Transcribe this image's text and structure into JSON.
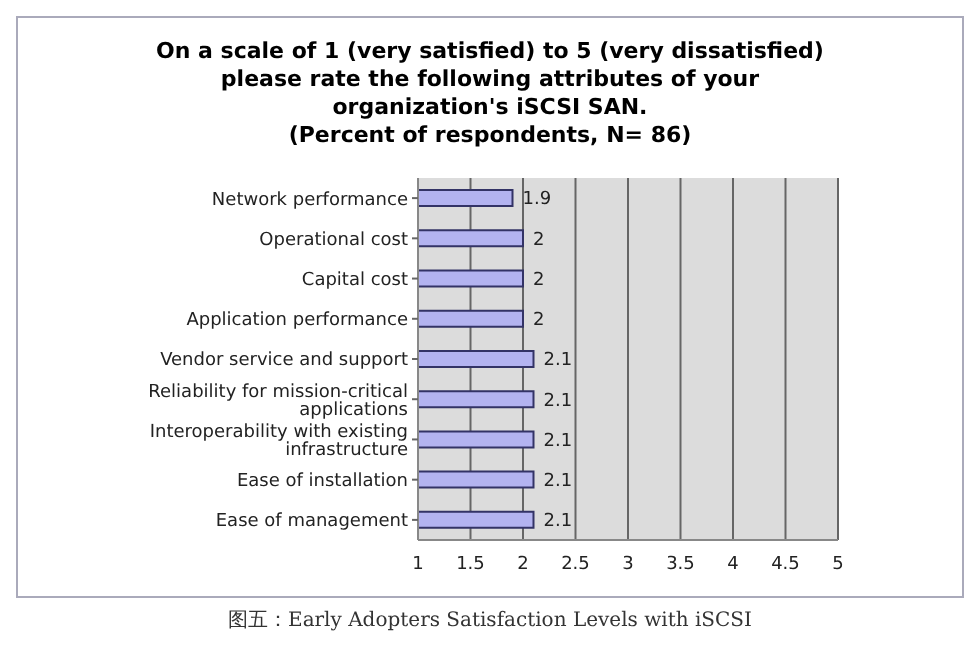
{
  "chart_data": {
    "type": "bar",
    "orientation": "horizontal",
    "title": "On a scale of 1 (very satisfied) to 5 (very dissatisfied) please rate the following attributes of your organization's iSCSI SAN.",
    "subtitle": "(Percent of respondents, N= 86)",
    "categories": [
      "Network performance",
      "Operational cost",
      "Capital cost",
      "Application performance",
      "Vendor service and support",
      "Reliability for mission-critical applications",
      "Interoperability with existing infrastructure",
      "Ease of installation",
      "Ease of management"
    ],
    "values": [
      1.9,
      2,
      2,
      2,
      2.1,
      2.1,
      2.1,
      2.1,
      2.1
    ],
    "color": "#b3b3f0",
    "xlim": [
      1,
      5
    ],
    "xticks": [
      1,
      1.5,
      2,
      2.5,
      3,
      3.5,
      4,
      4.5,
      5
    ],
    "grid": "x",
    "data_labels": true,
    "annotations": [
      "图五：Early Adopters Satisfaction Levels with iSCSI"
    ]
  }
}
